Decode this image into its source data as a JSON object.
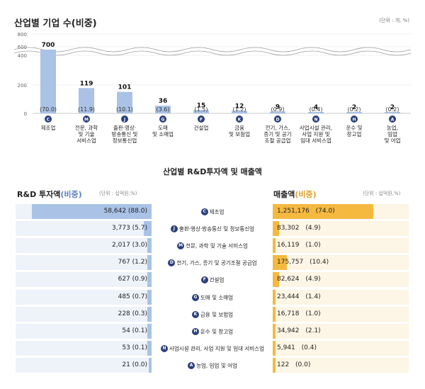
{
  "chart_top": {
    "title": "산업별 기업 수(비중)",
    "unit": "(단위 : 개, %)",
    "type": "bar",
    "yticks": [
      "800",
      "600",
      "400",
      "200",
      "0"
    ],
    "bars": [
      {
        "value": 700,
        "value_label": "700",
        "share": "(70.0)",
        "code": "C",
        "category": [
          "제조업"
        ]
      },
      {
        "value": 119,
        "value_label": "119",
        "share": "(11.9)",
        "code": "M",
        "category": [
          "전문, 과학",
          "및 기술",
          "서비스업"
        ]
      },
      {
        "value": 101,
        "value_label": "101",
        "share": "(10.1)",
        "code": "J",
        "category": [
          "출판·영상·",
          "방송통신 및",
          "정보통신업"
        ]
      },
      {
        "value": 36,
        "value_label": "36",
        "share": "(3.6)",
        "code": "G",
        "category": [
          "도매",
          "및 소매업"
        ]
      },
      {
        "value": 15,
        "value_label": "15",
        "share": "(1.5)",
        "code": "F",
        "category": [
          "건설업"
        ]
      },
      {
        "value": 12,
        "value_label": "12",
        "share": "(1.2)",
        "code": "K",
        "category": [
          "금융",
          "및 보험업"
        ]
      },
      {
        "value": 9,
        "value_label": "9",
        "share": "(0.9)",
        "code": "D",
        "category": [
          "전기, 가스,",
          "증기 및 공기",
          "조절 공급업"
        ]
      },
      {
        "value": 4,
        "value_label": "4",
        "share": "(0.4)",
        "code": "N",
        "category": [
          "사업시설 관리,",
          "사업 지원 및",
          "임대 서비스업"
        ]
      },
      {
        "value": 2,
        "value_label": "2",
        "share": "(0.2)",
        "code": "H",
        "category": [
          "운수 및",
          "창고업"
        ]
      },
      {
        "value": 2,
        "value_label": "2",
        "share": "(0.2)",
        "code": "A",
        "category": [
          "농업,",
          "임업",
          "및 어업"
        ]
      }
    ]
  },
  "chart_bottom": {
    "title": "산업별 R&D투자액 및 매출액",
    "rd_title": "R&D 투자액",
    "rd_title_sub": "(비중)",
    "rd_unit": "(단위 : 십억원,%)",
    "sales_title": "매출액",
    "sales_title_sub": "(비중)",
    "sales_unit": "(단위 : 십억원,%)",
    "rows": [
      {
        "code": "C",
        "name": "제조업",
        "rd": "58,642",
        "rd_share": "(88.0)",
        "rd_pct": 88.0,
        "sales": "1,251,176",
        "sales_share": "(74.0)",
        "sales_pct": 74.0
      },
      {
        "code": "J",
        "name": "출판·영상·방송통신 및 정보통신업",
        "rd": "3,773",
        "rd_share": "(5.7)",
        "rd_pct": 5.7,
        "sales": "83,302",
        "sales_share": "(4.9)",
        "sales_pct": 4.9
      },
      {
        "code": "M",
        "name": "전문, 과학 및 기술 서비스업",
        "rd": "2,017",
        "rd_share": "(3.0)",
        "rd_pct": 3.0,
        "sales": "16,119",
        "sales_share": "(1.0)",
        "sales_pct": 1.0
      },
      {
        "code": "D",
        "name": "전기, 가스, 증기 및 공기조절 공급업",
        "rd": "767",
        "rd_share": "(1.2)",
        "rd_pct": 1.2,
        "sales": "175,757",
        "sales_share": "(10.4)",
        "sales_pct": 10.4
      },
      {
        "code": "F",
        "name": "건설업",
        "rd": "627",
        "rd_share": "(0.9)",
        "rd_pct": 0.9,
        "sales": "82,624",
        "sales_share": "(4.9)",
        "sales_pct": 4.9
      },
      {
        "code": "G",
        "name": "도매 및 소매업",
        "rd": "485",
        "rd_share": "(0.7)",
        "rd_pct": 0.7,
        "sales": "23,444",
        "sales_share": "(1.4)",
        "sales_pct": 1.4
      },
      {
        "code": "K",
        "name": "금융 및 보험업",
        "rd": "228",
        "rd_share": "(0.3)",
        "rd_pct": 0.3,
        "sales": "16,718",
        "sales_share": "(1.0)",
        "sales_pct": 1.0
      },
      {
        "code": "H",
        "name": "운수 및 창고업",
        "rd": "54",
        "rd_share": "(0.1)",
        "rd_pct": 0.1,
        "sales": "34,942",
        "sales_share": "(2.1)",
        "sales_pct": 2.1
      },
      {
        "code": "N",
        "name": "사업시설 관리, 사업 지원 및 임대 서비스업",
        "rd": "53",
        "rd_share": "(0.1)",
        "rd_pct": 0.1,
        "sales": "5,941",
        "sales_share": "(0.4)",
        "sales_pct": 0.4
      },
      {
        "code": "A",
        "name": "농업, 임업 및 어업",
        "rd": "21",
        "rd_share": "(0.0)",
        "rd_pct": 0.0,
        "sales": "122",
        "sales_share": "(0.0)",
        "sales_pct": 0.0
      }
    ]
  },
  "colors": {
    "bar_blue": "#a9c2e6",
    "bar_blue_bg": "#eef2f9",
    "bar_orange": "#f5b940",
    "bar_orange_bg": "#fdf5e5",
    "badge_navy": "#2a3f7a",
    "accent_blue_text": "#5b7fc0",
    "accent_orange_text": "#e0a02a"
  },
  "chart_data": [
    {
      "type": "bar",
      "title": "산업별 기업 수(비중)",
      "categories": [
        "제조업",
        "전문, 과학 및 기술 서비스업",
        "출판·영상·방송통신 및 정보통신업",
        "도매 및 소매업",
        "건설업",
        "금융 및 보험업",
        "전기, 가스, 증기 및 공기조절 공급업",
        "사업시설 관리, 사업 지원 및 임대 서비스업",
        "운수 및 창고업",
        "농업, 임업 및 어업"
      ],
      "values": [
        700,
        119,
        101,
        36,
        15,
        12,
        9,
        4,
        2,
        2
      ],
      "shares": [
        70.0,
        11.9,
        10.1,
        3.6,
        1.5,
        1.2,
        0.9,
        0.4,
        0.2,
        0.2
      ],
      "ylim": [
        0,
        800
      ],
      "axis_break": true
    },
    {
      "type": "bar",
      "title": "R&D 투자액(비중)",
      "orientation": "horizontal",
      "categories": [
        "제조업",
        "출판·영상·방송통신 및 정보통신업",
        "전문, 과학 및 기술 서비스업",
        "전기, 가스, 증기 및 공기조절 공급업",
        "건설업",
        "도매 및 소매업",
        "금융 및 보험업",
        "운수 및 창고업",
        "사업시설 관리, 사업 지원 및 임대 서비스업",
        "농업, 임업 및 어업"
      ],
      "values": [
        58642,
        3773,
        2017,
        767,
        627,
        485,
        228,
        54,
        53,
        21
      ],
      "shares": [
        88.0,
        5.7,
        3.0,
        1.2,
        0.9,
        0.7,
        0.3,
        0.1,
        0.1,
        0.0
      ]
    },
    {
      "type": "bar",
      "title": "매출액(비중)",
      "orientation": "horizontal",
      "categories": [
        "제조업",
        "출판·영상·방송통신 및 정보통신업",
        "전문, 과학 및 기술 서비스업",
        "전기, 가스, 증기 및 공기조절 공급업",
        "건설업",
        "도매 및 소매업",
        "금융 및 보험업",
        "운수 및 창고업",
        "사업시설 관리, 사업 지원 및 임대 서비스업",
        "농업, 임업 및 어업"
      ],
      "values": [
        1251176,
        83302,
        16119,
        175757,
        82624,
        23444,
        16718,
        34942,
        5941,
        122
      ],
      "shares": [
        74.0,
        4.9,
        1.0,
        10.4,
        4.9,
        1.4,
        1.0,
        2.1,
        0.4,
        0.0
      ]
    }
  ]
}
